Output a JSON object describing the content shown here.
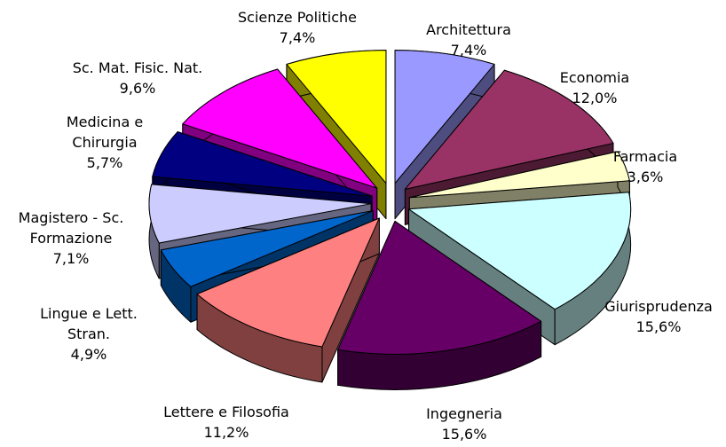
{
  "chart_data": {
    "type": "pie3d",
    "categories": [
      "Architettura",
      "Economia",
      "Farmacia",
      "Giurisprudenza",
      "Ingegneria",
      "Lettere e Filosofia",
      "Lingue e Lett. Stran.",
      "Magistero - Sc. Formazione",
      "Medicina e Chirurgia",
      "Sc. Mat. Fisic. Nat.",
      "Scienze Politiche"
    ],
    "values": [
      7.4,
      12.0,
      3.6,
      15.6,
      15.6,
      11.2,
      4.9,
      7.1,
      5.7,
      9.6,
      7.4
    ],
    "value_labels": [
      "7,4%",
      "12,0%",
      "3,6%",
      "15,6%",
      "15,6%",
      "11,2%",
      "4,9%",
      "7,1%",
      "5,7%",
      "9,6%",
      "7,4%"
    ],
    "colors": [
      "#9999ff",
      "#993366",
      "#ffffcc",
      "#ccffff",
      "#660066",
      "#ff8080",
      "#0066cc",
      "#ccccff",
      "#000080",
      "#ff00ff",
      "#ffff00"
    ]
  }
}
